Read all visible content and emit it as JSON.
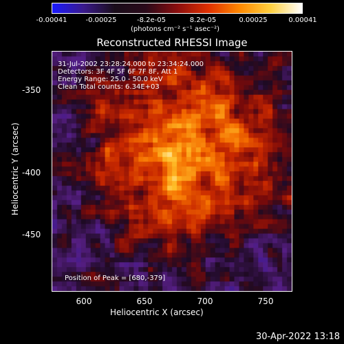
{
  "colorbar": {
    "ticks": [
      "-0.00041",
      "-0.00025",
      "-8.2e-05",
      "8.2e-05",
      "0.00025",
      "0.00041"
    ],
    "unit": "(photons cm⁻² s⁻¹ asec⁻²)",
    "colors": [
      "#1a1aff",
      "#3a1a8c",
      "#1a0d1a",
      "#2a0a1a",
      "#8a0e0e",
      "#e03000",
      "#ff8800",
      "#ffd040",
      "#ffffff"
    ]
  },
  "title": "Reconstructed RHESSI Image",
  "info": {
    "line1": "31-Jul-2002 23:28:24.000 to 23:34:24.000",
    "line2": "Detectors: 3F 4F 5F 6F 7F 8F, Att 1",
    "line3": "Energy Range: 25.0 - 50.0 keV",
    "line4": "Clean     Total counts: 6.34E+03"
  },
  "peak_text": "Position of Peak = [680,-379]",
  "axes": {
    "xlabel": "Heliocentric X (arcsec)",
    "ylabel": "Heliocentric Y (arcsec)",
    "xticks": [
      "600",
      "650",
      "700",
      "750"
    ],
    "yticks": [
      "-350",
      "-400",
      "-450"
    ]
  },
  "timestamp": "30-Apr-2022 13:18"
}
